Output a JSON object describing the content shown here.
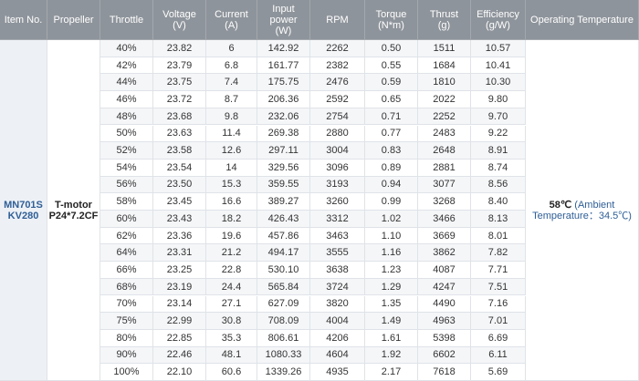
{
  "table": {
    "headers": [
      [
        "Item No."
      ],
      [
        "Propeller"
      ],
      [
        "Throttle"
      ],
      [
        "Voltage",
        "(V)"
      ],
      [
        "Current",
        "(A)"
      ],
      [
        "Input power",
        "(W)"
      ],
      [
        "RPM"
      ],
      [
        "Torque",
        "(N*m)"
      ],
      [
        "Thrust",
        "(g)"
      ],
      [
        "Efficiency",
        "(g/W)"
      ],
      [
        "Operating Temperature"
      ]
    ],
    "item": [
      "MN701S",
      "KV280"
    ],
    "propeller": [
      "T-motor",
      "P24*7.2CF"
    ],
    "temperature": [
      "58℃",
      "(Ambient",
      "Temperature：34.5℃)"
    ],
    "rows": [
      [
        "40%",
        "23.82",
        "6",
        "142.92",
        "2262",
        "0.50",
        "1511",
        "10.57"
      ],
      [
        "42%",
        "23.79",
        "6.8",
        "161.77",
        "2382",
        "0.55",
        "1684",
        "10.41"
      ],
      [
        "44%",
        "23.75",
        "7.4",
        "175.75",
        "2476",
        "0.59",
        "1810",
        "10.30"
      ],
      [
        "46%",
        "23.72",
        "8.7",
        "206.36",
        "2592",
        "0.65",
        "2022",
        "9.80"
      ],
      [
        "48%",
        "23.68",
        "9.8",
        "232.06",
        "2754",
        "0.71",
        "2252",
        "9.70"
      ],
      [
        "50%",
        "23.63",
        "11.4",
        "269.38",
        "2880",
        "0.77",
        "2483",
        "9.22"
      ],
      [
        "52%",
        "23.58",
        "12.6",
        "297.11",
        "3004",
        "0.83",
        "2648",
        "8.91"
      ],
      [
        "54%",
        "23.54",
        "14",
        "329.56",
        "3096",
        "0.89",
        "2881",
        "8.74"
      ],
      [
        "56%",
        "23.50",
        "15.3",
        "359.55",
        "3193",
        "0.94",
        "3077",
        "8.56"
      ],
      [
        "58%",
        "23.45",
        "16.6",
        "389.27",
        "3260",
        "0.99",
        "3268",
        "8.40"
      ],
      [
        "60%",
        "23.43",
        "18.2",
        "426.43",
        "3312",
        "1.02",
        "3466",
        "8.13"
      ],
      [
        "62%",
        "23.36",
        "19.6",
        "457.86",
        "3463",
        "1.10",
        "3669",
        "8.01"
      ],
      [
        "64%",
        "23.31",
        "21.2",
        "494.17",
        "3555",
        "1.16",
        "3862",
        "7.82"
      ],
      [
        "66%",
        "23.25",
        "22.8",
        "530.10",
        "3638",
        "1.23",
        "4087",
        "7.71"
      ],
      [
        "68%",
        "23.19",
        "24.4",
        "565.84",
        "3724",
        "1.29",
        "4247",
        "7.51"
      ],
      [
        "70%",
        "23.14",
        "27.1",
        "627.09",
        "3820",
        "1.35",
        "4490",
        "7.16"
      ],
      [
        "75%",
        "22.99",
        "30.8",
        "708.09",
        "4004",
        "1.49",
        "4963",
        "7.01"
      ],
      [
        "80%",
        "22.85",
        "35.3",
        "806.61",
        "4206",
        "1.61",
        "5398",
        "6.69"
      ],
      [
        "90%",
        "22.46",
        "48.1",
        "1080.33",
        "4604",
        "1.92",
        "6602",
        "6.11"
      ],
      [
        "100%",
        "22.10",
        "60.6",
        "1339.26",
        "4935",
        "2.17",
        "7618",
        "5.69"
      ]
    ]
  }
}
